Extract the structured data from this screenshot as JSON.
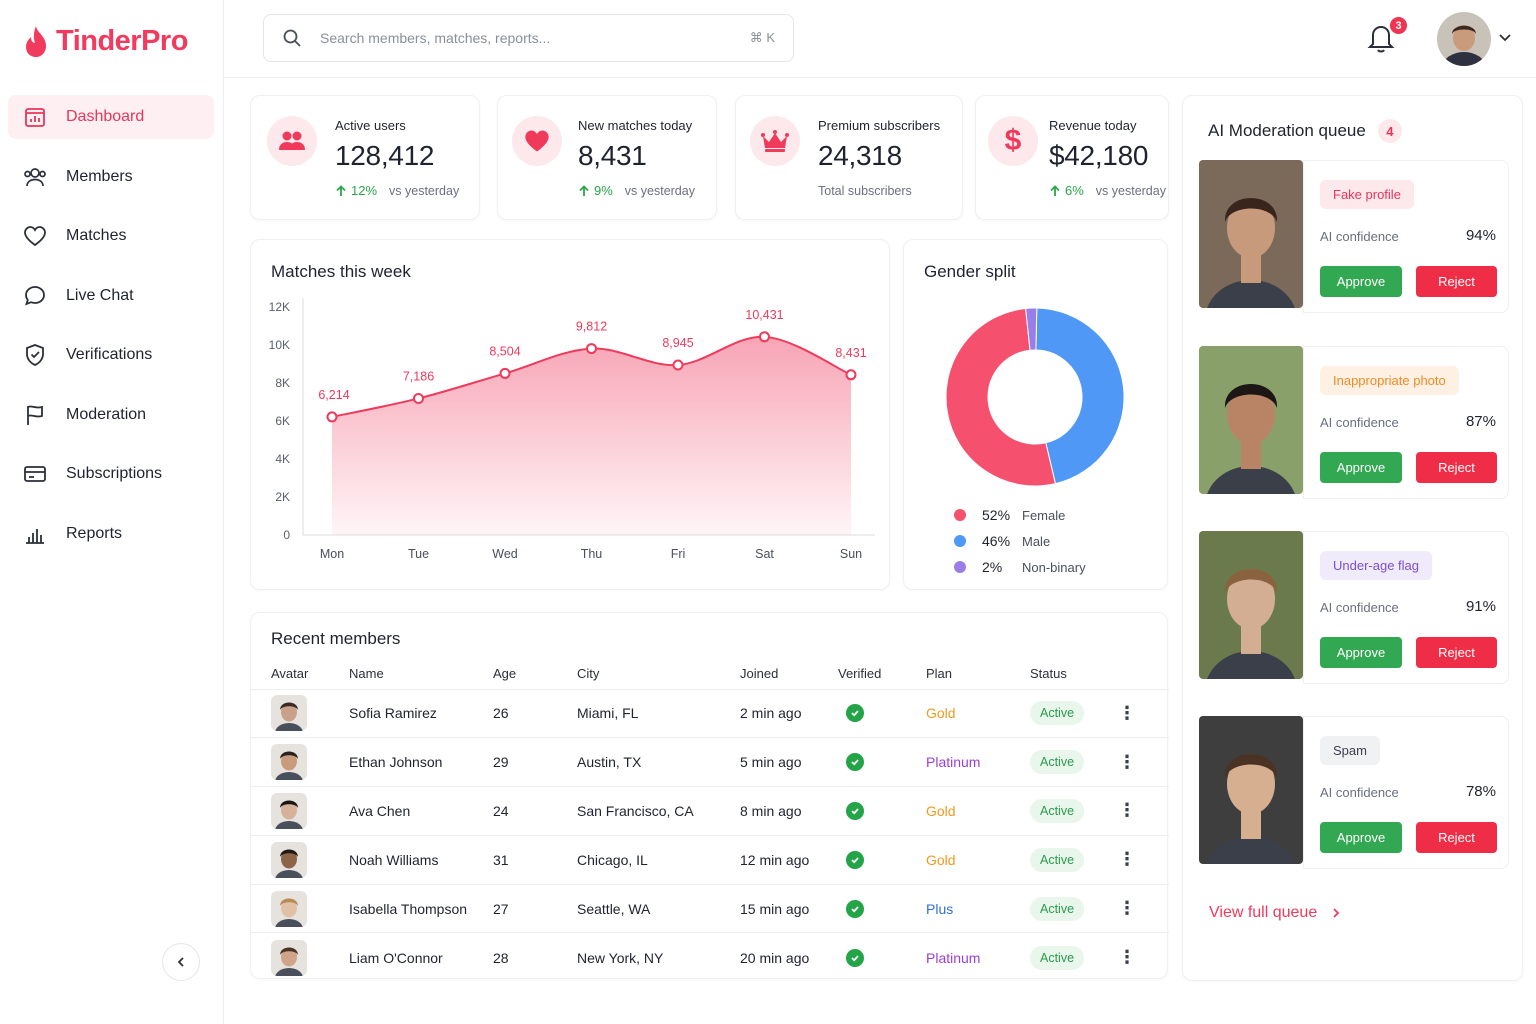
{
  "app": {
    "name": "TinderPro"
  },
  "sidebar": {
    "items": [
      {
        "label": "Dashboard",
        "icon": "dashboard-icon",
        "active": true
      },
      {
        "label": "Members",
        "icon": "members-icon"
      },
      {
        "label": "Matches",
        "icon": "heart-icon"
      },
      {
        "label": "Live Chat",
        "icon": "chat-icon"
      },
      {
        "label": "Verifications",
        "icon": "shield-check-icon"
      },
      {
        "label": "Moderation",
        "icon": "flag-icon"
      },
      {
        "label": "Subscriptions",
        "icon": "card-icon"
      },
      {
        "label": "Reports",
        "icon": "bar-chart-icon"
      }
    ]
  },
  "header": {
    "search_placeholder": "Search members, matches, reports...",
    "search_shortcut": "⌘ K",
    "notifications_count": "3"
  },
  "stats": [
    {
      "label": "Active users",
      "value": "128,412",
      "trend": "12%",
      "trend_note": "vs yesterday",
      "icon": "users-icon"
    },
    {
      "label": "New matches today",
      "value": "8,431",
      "trend": "9%",
      "trend_note": "vs yesterday",
      "icon": "heart-icon"
    },
    {
      "label": "Premium subscribers",
      "value": "24,318",
      "sub": "Total subscribers",
      "icon": "crown-icon"
    },
    {
      "label": "Revenue today",
      "value": "$42,180",
      "trend": "6%",
      "trend_note": "vs yesterday",
      "icon": "dollar-icon"
    }
  ],
  "matches_chart": {
    "title": "Matches this week"
  },
  "chart_data": [
    {
      "type": "area",
      "title": "Matches this week",
      "categories": [
        "Mon",
        "Tue",
        "Wed",
        "Thu",
        "Fri",
        "Sat",
        "Sun"
      ],
      "values": [
        6214,
        7186,
        8504,
        9812,
        8945,
        10431,
        8431
      ],
      "value_labels": [
        "6,214",
        "7,186",
        "8,504",
        "9,812",
        "8,945",
        "10,431",
        "8,431"
      ],
      "ylim": [
        0,
        12000
      ],
      "yticks": [
        0,
        2000,
        4000,
        6000,
        8000,
        10000,
        12000
      ],
      "ytick_labels": [
        "0",
        "2K",
        "4K",
        "6K",
        "8K",
        "10K",
        "12K"
      ],
      "color": "#ef3a5c",
      "grid": false
    },
    {
      "type": "pie",
      "title": "Gender split",
      "donut": true,
      "labels": [
        "Female",
        "Male",
        "Non-binary"
      ],
      "values": [
        52,
        46,
        2
      ],
      "value_labels": [
        "52%",
        "46%",
        "2%"
      ],
      "colors": [
        "#f5516f",
        "#4f98f5",
        "#9a7ee8"
      ],
      "legend": "bottom"
    }
  ],
  "gender_chart": {
    "title": "Gender split"
  },
  "recent_members": {
    "title": "Recent members",
    "columns": [
      "Avatar",
      "Name",
      "Age",
      "City",
      "Joined",
      "Verified",
      "Plan",
      "Status"
    ],
    "rows": [
      {
        "name": "Sofia Ramirez",
        "age": "26",
        "city": "Miami, FL",
        "joined": "2 min ago",
        "plan": "Gold",
        "plan_color": "#f29a1f",
        "status": "Active"
      },
      {
        "name": "Ethan Johnson",
        "age": "29",
        "city": "Austin, TX",
        "joined": "5 min ago",
        "plan": "Platinum",
        "plan_color": "#9b3fd6",
        "status": "Active"
      },
      {
        "name": "Ava Chen",
        "age": "24",
        "city": "San Francisco, CA",
        "joined": "8 min ago",
        "plan": "Gold",
        "plan_color": "#f29a1f",
        "status": "Active"
      },
      {
        "name": "Noah Williams",
        "age": "31",
        "city": "Chicago, IL",
        "joined": "12 min ago",
        "plan": "Gold",
        "plan_color": "#f29a1f",
        "status": "Active"
      },
      {
        "name": "Isabella Thompson",
        "age": "27",
        "city": "Seattle, WA",
        "joined": "15 min ago",
        "plan": "Plus",
        "plan_color": "#2f6fe0",
        "status": "Active"
      },
      {
        "name": "Liam O'Connor",
        "age": "28",
        "city": "New York, NY",
        "joined": "20 min ago",
        "plan": "Platinum",
        "plan_color": "#9b3fd6",
        "status": "Active"
      }
    ]
  },
  "moderation": {
    "title": "AI Moderation queue",
    "count": "4",
    "conf_label": "AI confidence",
    "approve_label": "Approve",
    "reject_label": "Reject",
    "view_all": "View full queue",
    "items": [
      {
        "tag": "Fake profile",
        "tag_color": "#e8365a",
        "tag_bg": "#fde8ec",
        "confidence": "94%"
      },
      {
        "tag": "Inappropriate photo",
        "tag_color": "#f08a24",
        "tag_bg": "#fef1e3",
        "confidence": "87%"
      },
      {
        "tag": "Under-age flag",
        "tag_color": "#7a4fd0",
        "tag_bg": "#f0ebfb",
        "confidence": "91%"
      },
      {
        "tag": "Spam",
        "tag_color": "#3a3f4c",
        "tag_bg": "#f0f1f3",
        "confidence": "78%"
      }
    ]
  }
}
